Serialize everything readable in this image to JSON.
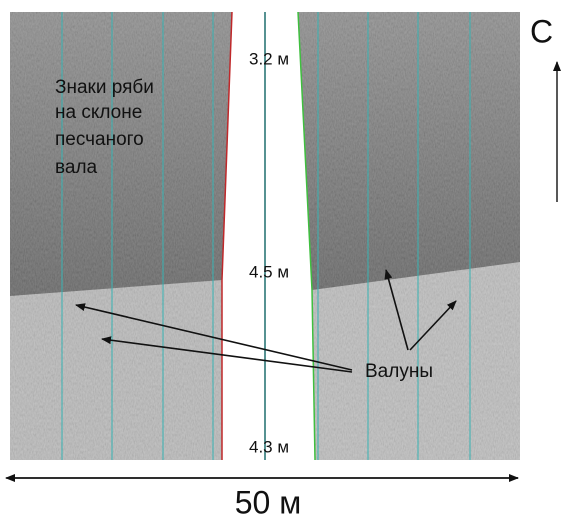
{
  "north_label": "С",
  "ripple_label": {
    "lines": [
      "Знаки ряби",
      "на склоне",
      "песчаного",
      "вала"
    ]
  },
  "depth_labels": [
    "3.2 м",
    "4.5 м",
    "4.3 м"
  ],
  "boulders_label": "Валуны",
  "scale_label": "50 м"
}
